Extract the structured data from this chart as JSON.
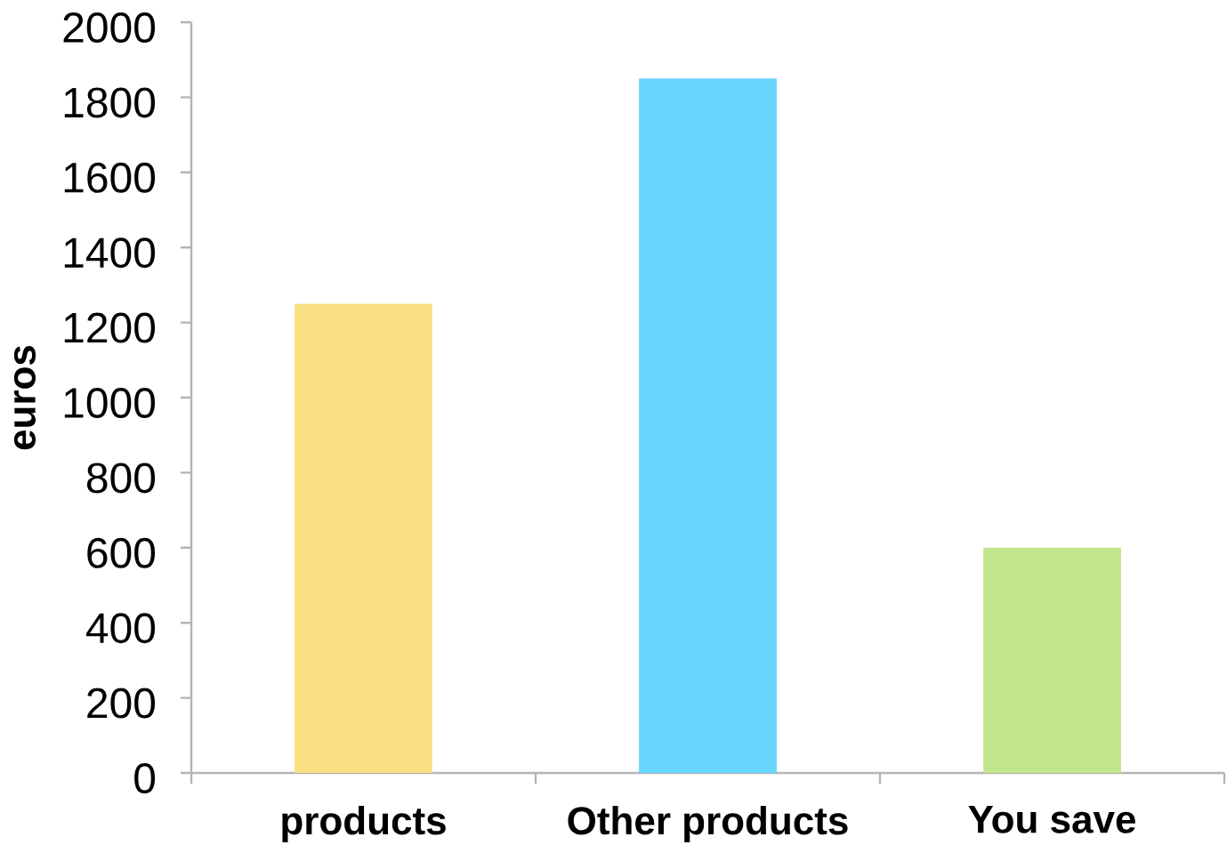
{
  "chart_data": {
    "type": "bar",
    "categories": [
      "products",
      "Other products",
      "You save"
    ],
    "values": [
      1250,
      1850,
      600
    ],
    "colors": [
      "#f9e082",
      "#66d5fe",
      "#c2e68a"
    ],
    "ylabel": "euros",
    "ylim": [
      0,
      2000
    ],
    "yticks": [
      0,
      200,
      400,
      600,
      800,
      1000,
      1200,
      1400,
      1600,
      1800,
      2000
    ]
  }
}
